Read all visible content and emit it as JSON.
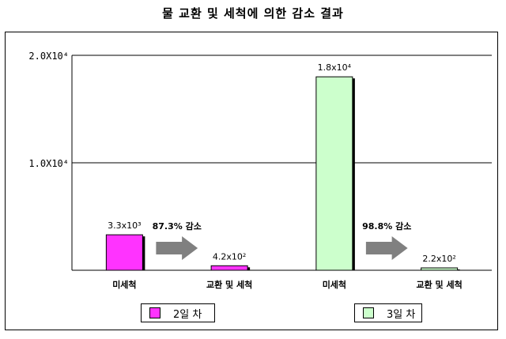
{
  "chart_data": {
    "type": "bar",
    "title": "물 교환 및 세척에 의한 감소 결과",
    "categories": [
      "미세척",
      "교환 및 세척",
      "미세척",
      "교환 및 세척"
    ],
    "series": [
      {
        "name": "2일 차",
        "color": "#ff33ff",
        "values": [
          3300,
          420,
          null,
          null
        ]
      },
      {
        "name": "3일 차",
        "color": "#ccffcc",
        "values": [
          null,
          null,
          18000,
          220
        ]
      }
    ],
    "data_labels": [
      "3.3x10³",
      "4.2x10²",
      "1.8x10⁴",
      "2.2x10²"
    ],
    "ytick_labels": [
      "2.0X10⁴",
      "1.0X10⁴"
    ],
    "yticks": [
      20000,
      10000
    ],
    "ylim": [
      0,
      20000
    ],
    "grid": true,
    "annotations": [
      {
        "text": "87.3% 감소",
        "from_category": 0,
        "to_category": 1
      },
      {
        "text": "98.8% 감소",
        "from_category": 2,
        "to_category": 3
      }
    ],
    "legend_position": "bottom"
  }
}
